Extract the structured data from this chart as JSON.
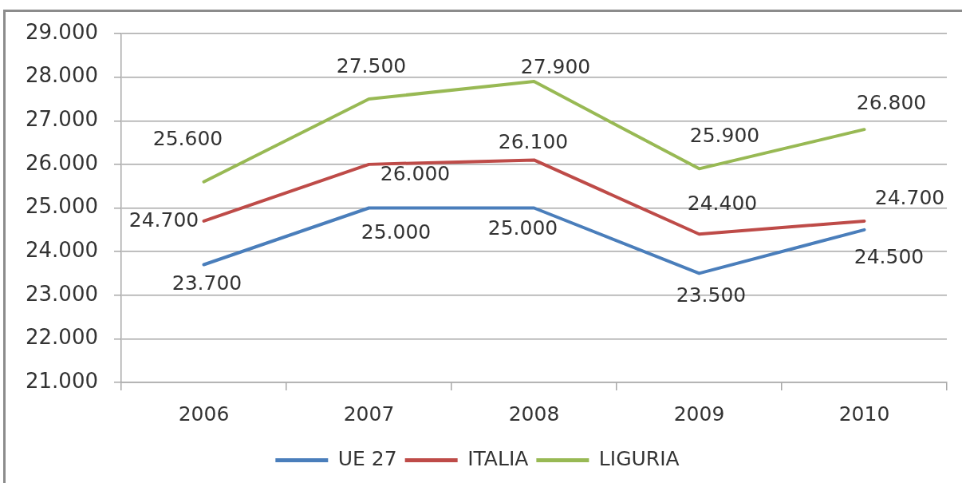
{
  "chart_data": {
    "type": "line",
    "categories": [
      "2006",
      "2007",
      "2008",
      "2009",
      "2010"
    ],
    "series": [
      {
        "name": "UE 27",
        "color": "#4a7ebb",
        "values": [
          23700,
          25000,
          25000,
          23500,
          24500
        ],
        "value_labels": [
          "23.700",
          "25.000",
          "25.000",
          "23.500",
          "24.500"
        ]
      },
      {
        "name": "ITALIA",
        "color": "#be4b48",
        "values": [
          24700,
          26000,
          26100,
          24400,
          24700
        ],
        "value_labels": [
          "24.700",
          "26.000",
          "26.100",
          "24.400",
          "24.700"
        ]
      },
      {
        "name": "LIGURIA",
        "color": "#98b954",
        "values": [
          25600,
          27500,
          27900,
          25900,
          26800
        ],
        "value_labels": [
          "25.600",
          "27.500",
          "27.900",
          "25.900",
          "26.800"
        ]
      }
    ],
    "ylim": [
      21000,
      29000
    ],
    "yticks": [
      {
        "value": 21000,
        "label": "21.000"
      },
      {
        "value": 22000,
        "label": "22.000"
      },
      {
        "value": 23000,
        "label": "23.000"
      },
      {
        "value": 24000,
        "label": "24.000"
      },
      {
        "value": 25000,
        "label": "25.000"
      },
      {
        "value": 26000,
        "label": "26.000"
      },
      {
        "value": 27000,
        "label": "27.000"
      },
      {
        "value": 28000,
        "label": "28.000"
      },
      {
        "value": 29000,
        "label": "29.000"
      }
    ],
    "grid": "y",
    "legend": "bottom",
    "marker": "none",
    "line_style": "solid"
  }
}
